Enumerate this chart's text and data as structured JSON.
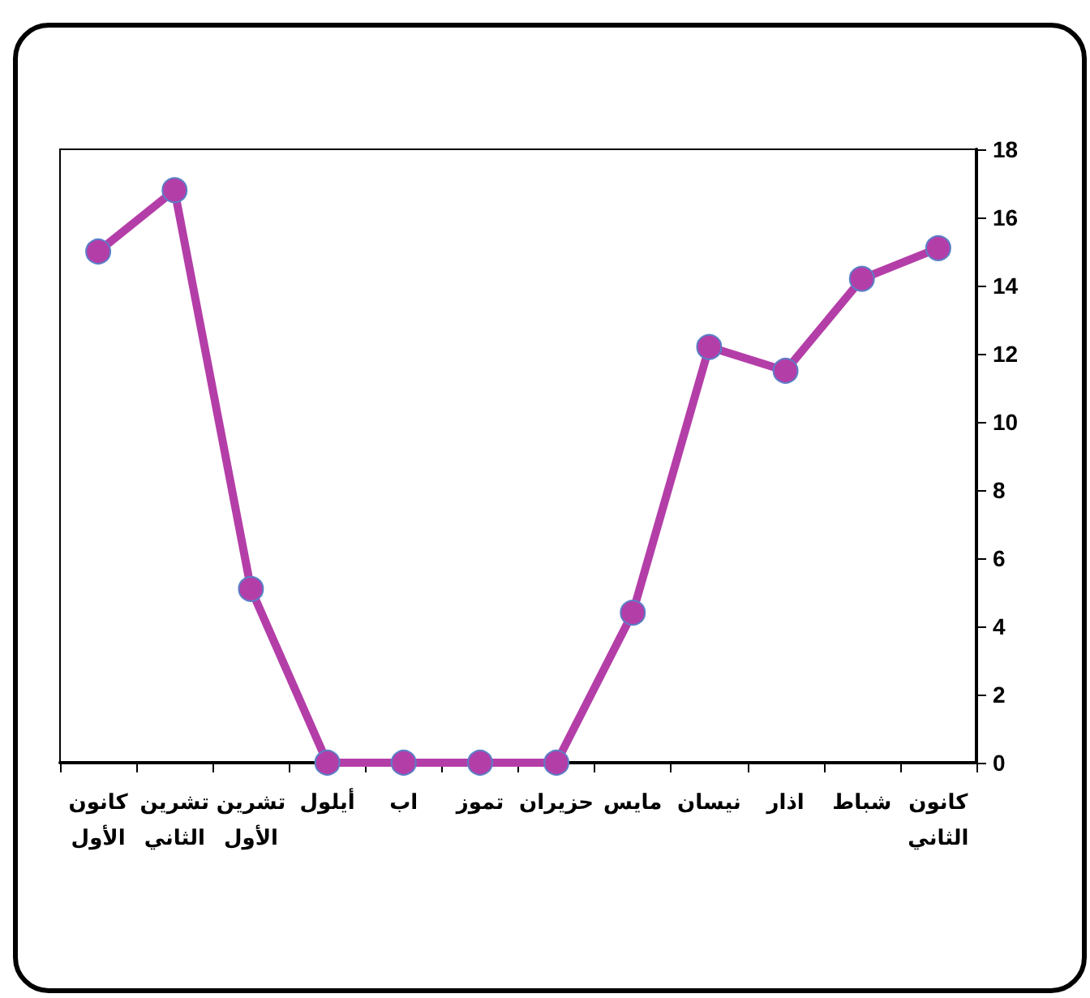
{
  "chart_data": {
    "type": "line",
    "categories": [
      "كانون الأول",
      "تشرين الثاني",
      "تشرين الأول",
      "أيلول",
      "اب",
      "تموز",
      "حزيران",
      "مايس",
      "نيسان",
      "اذار",
      "شباط",
      "كانون الثاني"
    ],
    "series": [
      {
        "color": "#b43ea8",
        "values": [
          15,
          16.8,
          5.1,
          0,
          0,
          0,
          0,
          4.4,
          12.2,
          11.5,
          14.2,
          15.1
        ]
      }
    ],
    "ylim": [
      0,
      18
    ],
    "yticks": [
      0,
      2,
      4,
      6,
      8,
      10,
      12,
      14,
      16,
      18
    ],
    "grid": false,
    "marker": "circle",
    "line_style": "solid"
  }
}
